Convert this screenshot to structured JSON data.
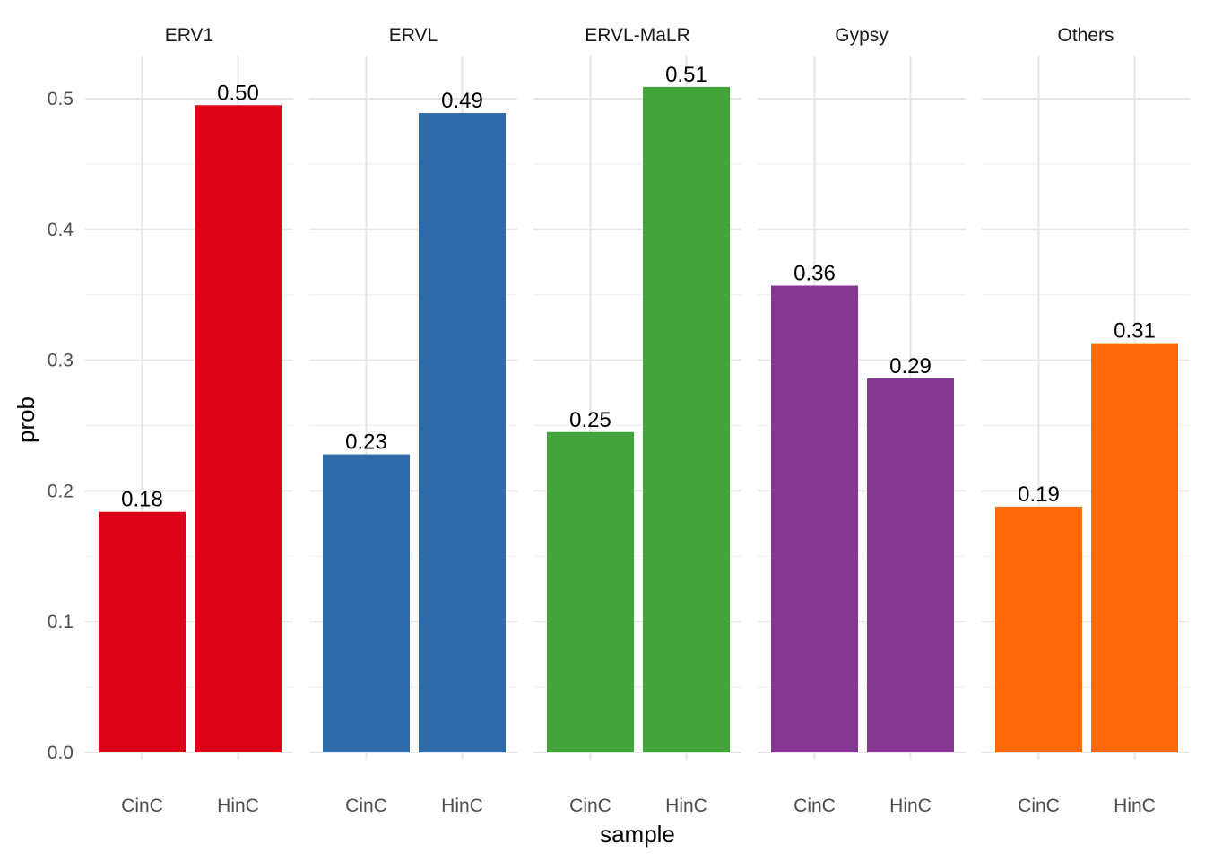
{
  "chart_data": {
    "type": "bar",
    "xlabel": "sample",
    "ylabel": "prob",
    "ylim": [
      0,
      0.53
    ],
    "y_ticks": [
      0.0,
      0.1,
      0.2,
      0.3,
      0.4,
      0.5
    ],
    "y_tick_labels": [
      "0.0",
      "0.1",
      "0.2",
      "0.3",
      "0.4",
      "0.5"
    ],
    "categories": [
      "CinC",
      "HinC"
    ],
    "grid": true,
    "legend": "none",
    "facets": [
      {
        "name": "ERV1",
        "color": "#DC0019",
        "values": [
          0.184,
          0.495
        ],
        "labels": [
          "0.18",
          "0.50"
        ]
      },
      {
        "name": "ERVL",
        "color": "#2E6BA8",
        "values": [
          0.228,
          0.489
        ],
        "labels": [
          "0.23",
          "0.49"
        ]
      },
      {
        "name": "ERVL-MaLR",
        "color": "#43A43B",
        "values": [
          0.245,
          0.509
        ],
        "labels": [
          "0.25",
          "0.51"
        ]
      },
      {
        "name": "Gypsy",
        "color": "#843892",
        "values": [
          0.357,
          0.286
        ],
        "labels": [
          "0.36",
          "0.29"
        ]
      },
      {
        "name": "Others",
        "color": "#FD6A0B",
        "values": [
          0.188,
          0.313
        ],
        "labels": [
          "0.19",
          "0.31"
        ]
      }
    ]
  }
}
